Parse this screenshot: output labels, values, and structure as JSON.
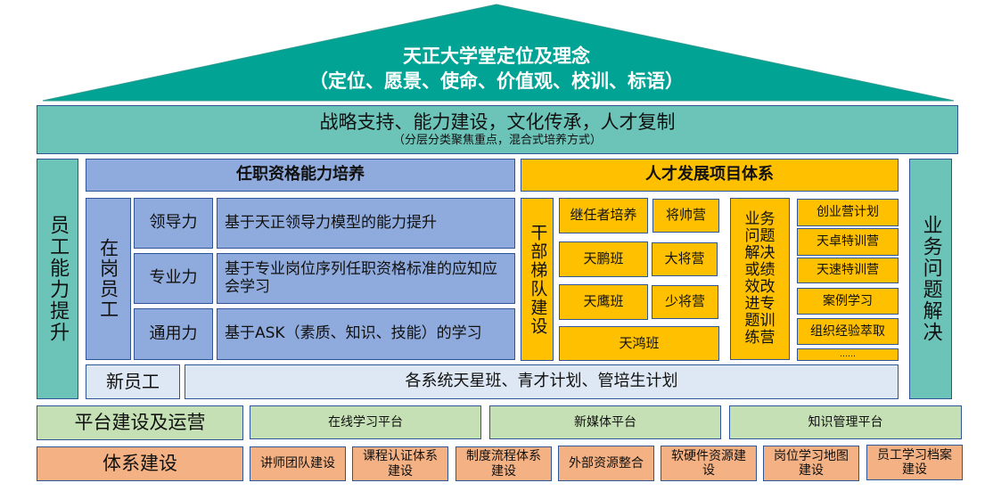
{
  "colors": {
    "roof": "#00a394",
    "band": "#6cc4b9",
    "blue": "#8faadc",
    "gold": "#ffc000",
    "green": "#c5e0b4",
    "orange": "#f4b183",
    "border": "#2f5597"
  },
  "roof": {
    "title": "天正大学堂定位及理念",
    "subtitle": "（定位、愿景、使命、价值观、校训、标语）"
  },
  "band": {
    "title": "战略支持、能力建设，文化传承，人才复制",
    "subtitle": "（分层分类聚焦重点，混合式培养方式）"
  },
  "left_pillar": "员工能力提升",
  "right_pillar": "业务问题解决",
  "qualification": {
    "header": "任职资格能力培养",
    "group": "在岗员工",
    "rows": [
      {
        "label": "领导力",
        "desc": "基于天正领导力模型的能力提升"
      },
      {
        "label": "专业力",
        "desc": "基于专业岗位序列任职资格标准的应知应会学习"
      },
      {
        "label": "通用力",
        "desc": "基于ASK（素质、知识、技能）的学习"
      }
    ]
  },
  "new_staff": {
    "label": "新员工",
    "desc": "各系统天星班、青才计划、管培生计划"
  },
  "talent": {
    "header": "人才发展项目体系",
    "cadre": "干部梯队建设",
    "programs": [
      "继任者培养",
      "将帅营",
      "天鹏班",
      "大将营",
      "天鹰班",
      "少将营",
      "天鸿班"
    ],
    "business": "业务问题解决或绩效改进专题训练营",
    "list": [
      "创业营计划",
      "天卓特训营",
      "天速特训营",
      "案例学习",
      "组织经验萃取",
      "……"
    ]
  },
  "platform": {
    "label": "平台建设及运营",
    "items": [
      "在线学习平台",
      "新媒体平台",
      "知识管理平台"
    ]
  },
  "system": {
    "label": "体系建设",
    "items": [
      "讲师团队建设",
      "课程认证体系建设",
      "制度流程体系建设",
      "外部资源整合",
      "软硬件资源建设",
      "岗位学习地图建设",
      "员工学习档案建设"
    ]
  }
}
